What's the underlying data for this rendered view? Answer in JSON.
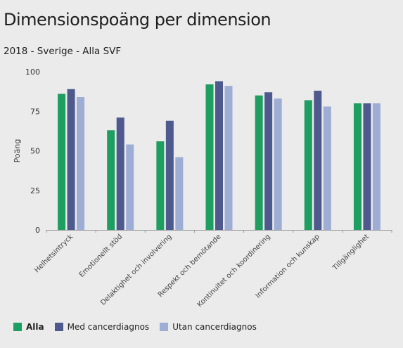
{
  "chart_data": {
    "type": "bar",
    "title": "Dimensionspoäng per dimension",
    "subtitle": "2018 - Sverige - Alla SVF",
    "ylabel": "Poäng",
    "xlabel": "",
    "ylim": [
      0,
      100
    ],
    "yticks": [
      0,
      25,
      50,
      75,
      100
    ],
    "grid": false,
    "legend_position": "bottom-left",
    "categories": [
      "Helhetsintryck",
      "Emotionellt stöd",
      "Delaktighet och involvering",
      "Respekt och bemötande",
      "Kontinuitet och koordinering",
      "Information och kunskap",
      "Tillgänglighet"
    ],
    "series": [
      {
        "name": "Alla",
        "color": "#1e9e60",
        "values": [
          86,
          63,
          56,
          92,
          85,
          82,
          80
        ]
      },
      {
        "name": "Med cancerdiagnos",
        "color": "#4e5a8e",
        "values": [
          89,
          71,
          69,
          94,
          87,
          88,
          80
        ]
      },
      {
        "name": "Utan cancerdiagnos",
        "color": "#9eadd4",
        "values": [
          84,
          54,
          46,
          91,
          83,
          78,
          80
        ]
      }
    ]
  }
}
